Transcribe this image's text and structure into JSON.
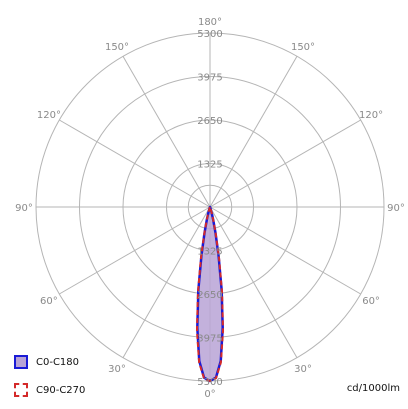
{
  "chart_data": {
    "type": "polar",
    "radial_max": 5300,
    "radial_ticks": [
      1325,
      2650,
      3975,
      5300
    ],
    "angle_labels": [
      {
        "text": "0°",
        "angle": 0
      },
      {
        "text": "30°",
        "angle": 30
      },
      {
        "text": "30°",
        "angle": -30
      },
      {
        "text": "60°",
        "angle": 60
      },
      {
        "text": "60°",
        "angle": -60
      },
      {
        "text": "90°",
        "angle": 90
      },
      {
        "text": "90°",
        "angle": -90
      },
      {
        "text": "120°",
        "angle": 120
      },
      {
        "text": "120°",
        "angle": -120
      },
      {
        "text": "150°",
        "angle": 150
      },
      {
        "text": "150°",
        "angle": -150
      },
      {
        "text": "180°",
        "angle": 180
      }
    ],
    "series": [
      {
        "name": "C0-C180",
        "color": "#1a1ad6",
        "fill": "#b8a3d6",
        "style": "solid",
        "angles": [
          0,
          2,
          4,
          6,
          8,
          10,
          12,
          14,
          16,
          18,
          20,
          25
        ],
        "values": [
          5300,
          5200,
          4700,
          3700,
          2550,
          1500,
          800,
          400,
          180,
          70,
          20,
          0
        ]
      },
      {
        "name": "C90-C270",
        "color": "#d42a2a",
        "style": "dashed",
        "angles": [
          0,
          2,
          4,
          6,
          8,
          10,
          12,
          14,
          16,
          18,
          20,
          25
        ],
        "values": [
          5300,
          5220,
          4750,
          3800,
          2650,
          1600,
          850,
          430,
          190,
          75,
          22,
          0
        ]
      }
    ],
    "units": "cd/1000lm",
    "grid": true
  }
}
